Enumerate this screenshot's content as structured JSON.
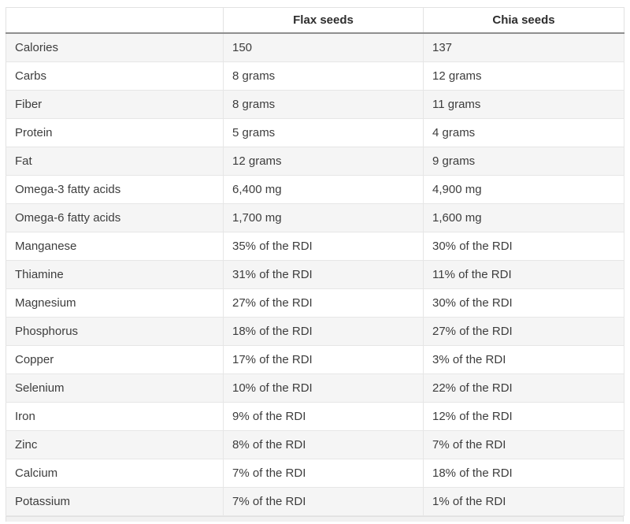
{
  "table": {
    "headers": [
      "",
      "Flax seeds",
      "Chia seeds"
    ],
    "rows": [
      {
        "label": "Calories",
        "flax": "150",
        "chia": "137"
      },
      {
        "label": "Carbs",
        "flax": "8 grams",
        "chia": "12 grams"
      },
      {
        "label": "Fiber",
        "flax": "8 grams",
        "chia": "11 grams"
      },
      {
        "label": "Protein",
        "flax": "5 grams",
        "chia": "4 grams"
      },
      {
        "label": "Fat",
        "flax": "12 grams",
        "chia": "9 grams"
      },
      {
        "label": "Omega-3 fatty acids",
        "flax": "6,400 mg",
        "chia": "4,900 mg"
      },
      {
        "label": "Omega-6 fatty acids",
        "flax": "1,700 mg",
        "chia": "1,600 mg"
      },
      {
        "label": "Manganese",
        "flax": "35% of the RDI",
        "chia": "30% of the RDI"
      },
      {
        "label": "Thiamine",
        "flax": "31% of the RDI",
        "chia": "11% of the RDI"
      },
      {
        "label": "Magnesium",
        "flax": "27% of the RDI",
        "chia": "30% of the RDI"
      },
      {
        "label": "Phosphorus",
        "flax": "18% of the RDI",
        "chia": "27% of the RDI"
      },
      {
        "label": "Copper",
        "flax": "17% of the RDI",
        "chia": "3% of the RDI"
      },
      {
        "label": "Selenium",
        "flax": "10% of the RDI",
        "chia": "22% of the RDI"
      },
      {
        "label": "Iron",
        "flax": "9% of the RDI",
        "chia": "12% of the RDI"
      },
      {
        "label": "Zinc",
        "flax": "8% of the RDI",
        "chia": "7% of the RDI"
      },
      {
        "label": "Calcium",
        "flax": "7% of the RDI",
        "chia": "18% of the RDI"
      },
      {
        "label": "Potassium",
        "flax": "7% of the RDI",
        "chia": "1% of the RDI"
      }
    ]
  },
  "colors": {
    "header_rule": "#8f8f8f",
    "grid_line": "#e4e4e4",
    "alt_row_bg": "#f5f5f5",
    "text": "#3d3d3d"
  }
}
